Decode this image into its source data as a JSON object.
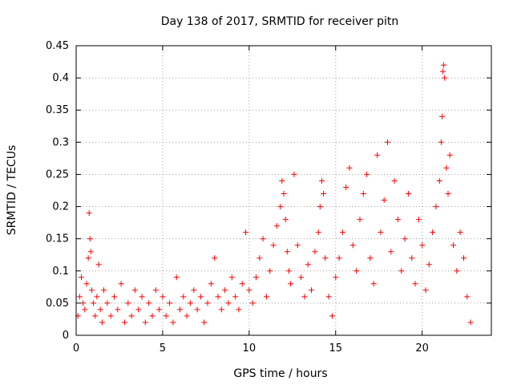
{
  "chart_data": {
    "type": "scatter",
    "title": "Day 138 of 2017, SRMTID for receiver pitn",
    "xlabel": "GPS time / hours",
    "ylabel": "SRMTID / TECUs",
    "xlim": [
      0,
      24
    ],
    "ylim": [
      0,
      0.45
    ],
    "xticks": [
      0,
      5,
      10,
      15,
      20
    ],
    "yticks": [
      0,
      0.05,
      0.1,
      0.15,
      0.2,
      0.25,
      0.3,
      0.35,
      0.4,
      0.45
    ],
    "ytick_labels": [
      "0",
      "0.05",
      "0.1",
      "0.15",
      "0.2",
      "0.25",
      "0.3",
      "0.35",
      "0.4",
      "0.45"
    ],
    "grid": true,
    "marker": "+",
    "color": "#ff0000",
    "series": [
      {
        "name": "SRMTID",
        "points": [
          [
            0.1,
            0.03
          ],
          [
            0.2,
            0.06
          ],
          [
            0.3,
            0.09
          ],
          [
            0.4,
            0.05
          ],
          [
            0.5,
            0.04
          ],
          [
            0.6,
            0.08
          ],
          [
            0.7,
            0.12
          ],
          [
            0.75,
            0.19
          ],
          [
            0.8,
            0.15
          ],
          [
            0.85,
            0.13
          ],
          [
            0.9,
            0.07
          ],
          [
            1.0,
            0.05
          ],
          [
            1.1,
            0.03
          ],
          [
            1.2,
            0.06
          ],
          [
            1.3,
            0.11
          ],
          [
            1.4,
            0.04
          ],
          [
            1.5,
            0.02
          ],
          [
            1.6,
            0.07
          ],
          [
            1.8,
            0.05
          ],
          [
            2.0,
            0.03
          ],
          [
            2.2,
            0.06
          ],
          [
            2.4,
            0.04
          ],
          [
            2.6,
            0.08
          ],
          [
            2.8,
            0.02
          ],
          [
            3.0,
            0.05
          ],
          [
            3.2,
            0.03
          ],
          [
            3.4,
            0.07
          ],
          [
            3.6,
            0.04
          ],
          [
            3.8,
            0.06
          ],
          [
            4.0,
            0.02
          ],
          [
            4.2,
            0.05
          ],
          [
            4.4,
            0.03
          ],
          [
            4.6,
            0.07
          ],
          [
            4.8,
            0.04
          ],
          [
            5.0,
            0.06
          ],
          [
            5.2,
            0.03
          ],
          [
            5.4,
            0.05
          ],
          [
            5.6,
            0.02
          ],
          [
            5.8,
            0.09
          ],
          [
            6.0,
            0.04
          ],
          [
            6.2,
            0.06
          ],
          [
            6.4,
            0.03
          ],
          [
            6.6,
            0.05
          ],
          [
            6.8,
            0.07
          ],
          [
            7.0,
            0.04
          ],
          [
            7.2,
            0.06
          ],
          [
            7.4,
            0.02
          ],
          [
            7.6,
            0.05
          ],
          [
            7.8,
            0.08
          ],
          [
            8.0,
            0.12
          ],
          [
            8.2,
            0.06
          ],
          [
            8.4,
            0.04
          ],
          [
            8.6,
            0.07
          ],
          [
            8.8,
            0.05
          ],
          [
            9.0,
            0.09
          ],
          [
            9.2,
            0.06
          ],
          [
            9.4,
            0.04
          ],
          [
            9.6,
            0.08
          ],
          [
            9.8,
            0.16
          ],
          [
            10.0,
            0.07
          ],
          [
            10.2,
            0.05
          ],
          [
            10.4,
            0.09
          ],
          [
            10.6,
            0.12
          ],
          [
            10.8,
            0.15
          ],
          [
            11.0,
            0.06
          ],
          [
            11.2,
            0.1
          ],
          [
            11.4,
            0.14
          ],
          [
            11.6,
            0.17
          ],
          [
            11.8,
            0.2
          ],
          [
            11.9,
            0.24
          ],
          [
            12.0,
            0.22
          ],
          [
            12.1,
            0.18
          ],
          [
            12.2,
            0.13
          ],
          [
            12.3,
            0.1
          ],
          [
            12.4,
            0.08
          ],
          [
            12.6,
            0.25
          ],
          [
            12.8,
            0.14
          ],
          [
            13.0,
            0.09
          ],
          [
            13.2,
            0.06
          ],
          [
            13.4,
            0.11
          ],
          [
            13.6,
            0.07
          ],
          [
            13.8,
            0.13
          ],
          [
            14.0,
            0.16
          ],
          [
            14.1,
            0.2
          ],
          [
            14.2,
            0.24
          ],
          [
            14.3,
            0.22
          ],
          [
            14.4,
            0.12
          ],
          [
            14.6,
            0.06
          ],
          [
            14.8,
            0.03
          ],
          [
            15.0,
            0.09
          ],
          [
            15.2,
            0.12
          ],
          [
            15.4,
            0.16
          ],
          [
            15.6,
            0.23
          ],
          [
            15.8,
            0.26
          ],
          [
            16.0,
            0.14
          ],
          [
            16.2,
            0.1
          ],
          [
            16.4,
            0.18
          ],
          [
            16.6,
            0.22
          ],
          [
            16.8,
            0.25
          ],
          [
            17.0,
            0.12
          ],
          [
            17.2,
            0.08
          ],
          [
            17.4,
            0.28
          ],
          [
            17.6,
            0.16
          ],
          [
            17.8,
            0.21
          ],
          [
            18.0,
            0.3
          ],
          [
            18.2,
            0.13
          ],
          [
            18.4,
            0.24
          ],
          [
            18.6,
            0.18
          ],
          [
            18.8,
            0.1
          ],
          [
            19.0,
            0.15
          ],
          [
            19.2,
            0.22
          ],
          [
            19.4,
            0.12
          ],
          [
            19.6,
            0.08
          ],
          [
            19.8,
            0.18
          ],
          [
            20.0,
            0.14
          ],
          [
            20.2,
            0.07
          ],
          [
            20.4,
            0.11
          ],
          [
            20.6,
            0.16
          ],
          [
            20.8,
            0.2
          ],
          [
            21.0,
            0.24
          ],
          [
            21.1,
            0.3
          ],
          [
            21.15,
            0.34
          ],
          [
            21.2,
            0.41
          ],
          [
            21.25,
            0.42
          ],
          [
            21.3,
            0.4
          ],
          [
            21.4,
            0.26
          ],
          [
            21.5,
            0.22
          ],
          [
            21.6,
            0.28
          ],
          [
            21.8,
            0.14
          ],
          [
            22.0,
            0.1
          ],
          [
            22.2,
            0.16
          ],
          [
            22.4,
            0.12
          ],
          [
            22.6,
            0.06
          ],
          [
            22.8,
            0.02
          ]
        ]
      }
    ]
  }
}
